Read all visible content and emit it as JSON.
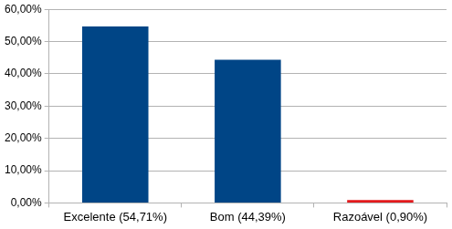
{
  "chart_data": {
    "type": "bar",
    "categories": [
      "Excelente (54,71%)",
      "Bom (44,39%)",
      "Razoável (0,90%)"
    ],
    "values": [
      54.71,
      44.39,
      0.9
    ],
    "colors": [
      "#004586",
      "#004586",
      "#e3191c"
    ],
    "ylim": [
      0,
      60
    ],
    "yticks": [
      {
        "value": 0,
        "label": "0,00%"
      },
      {
        "value": 10,
        "label": "10,00%"
      },
      {
        "value": 20,
        "label": "20,00%"
      },
      {
        "value": 30,
        "label": "30,00%"
      },
      {
        "value": 40,
        "label": "40,00%"
      },
      {
        "value": 50,
        "label": "50,00%"
      },
      {
        "value": 60,
        "label": "60,00%"
      }
    ],
    "grid": true
  }
}
